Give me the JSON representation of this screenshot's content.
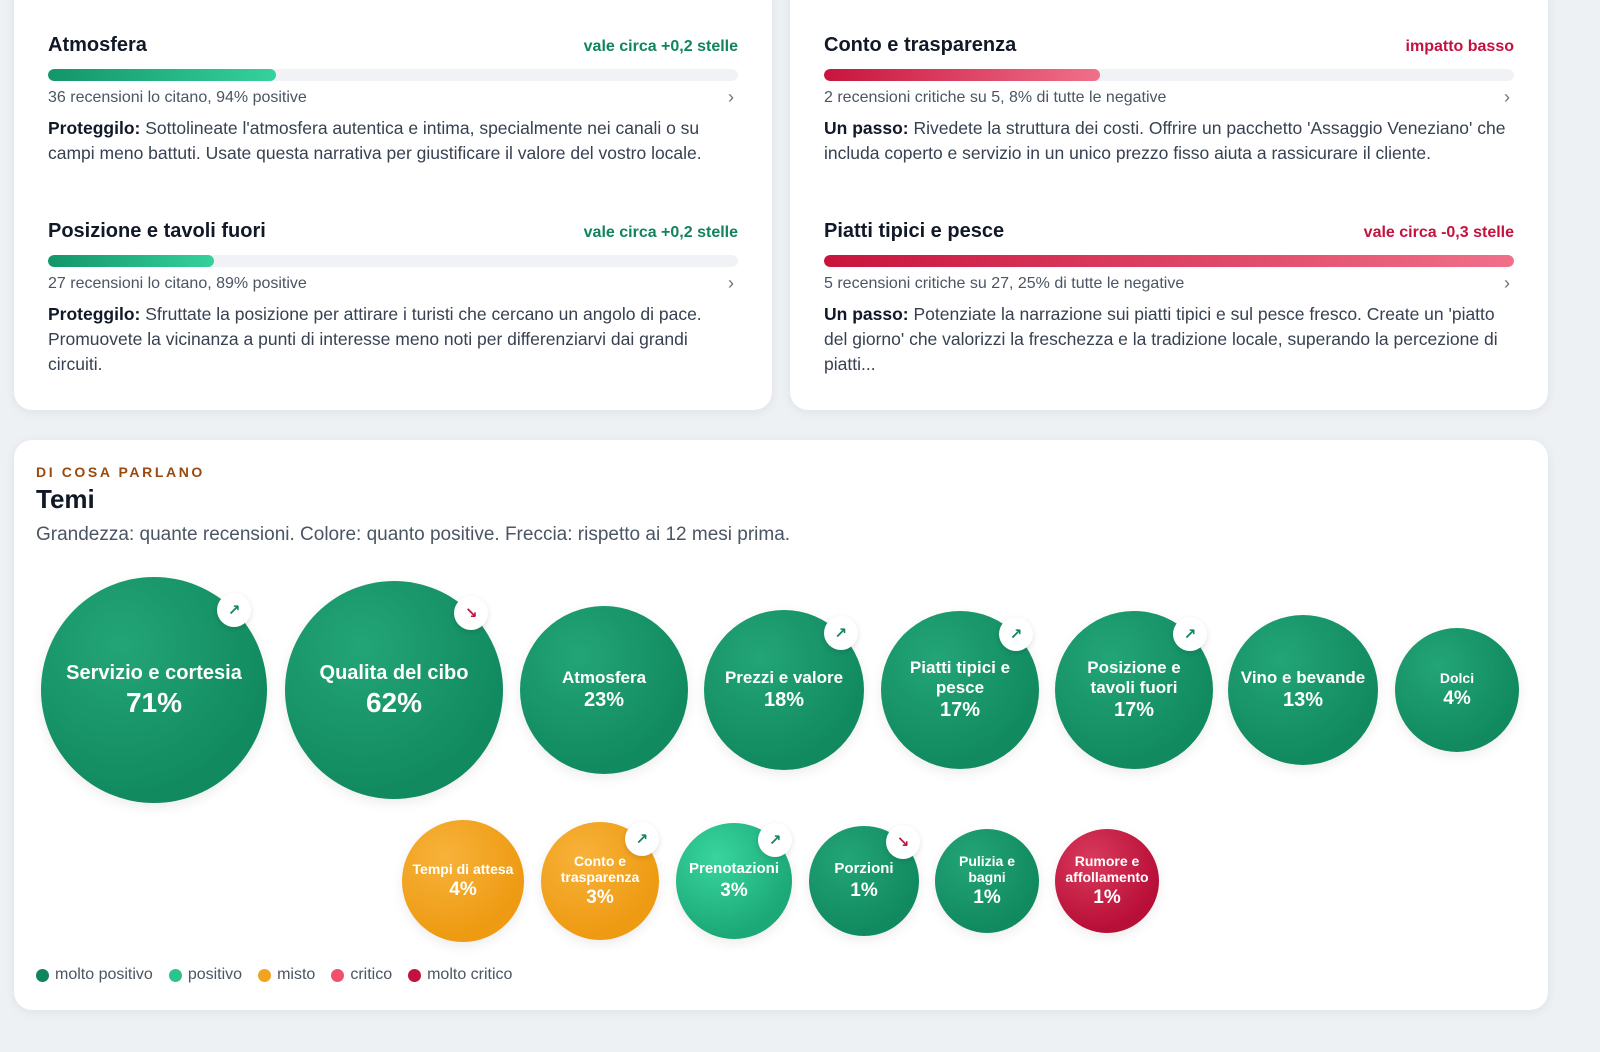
{
  "left_card": {
    "items": [
      {
        "title": "Atmosfera",
        "impact": "vale circa +0,2 stelle",
        "meta": "36 recensioni lo citano, 94% positive",
        "lead": "Proteggilo:",
        "body": "Sottolineate l'atmosfera autentica e intima, specialmente nei canali o su campi meno battuti. Usate questa narrativa per giustificare il valore del vostro locale.",
        "share": 0.33
      },
      {
        "title": "Posizione e tavoli fuori",
        "impact": "vale circa +0,2 stelle",
        "meta": "27 recensioni lo citano, 89% positive",
        "lead": "Proteggilo:",
        "body": "Sfruttate la posizione per attirare i turisti che cercano un angolo di pace. Promuovete la vicinanza a punti di interesse meno noti per differenziarvi dai grandi circuiti.",
        "share": 0.24
      }
    ]
  },
  "right_card": {
    "items": [
      {
        "title": "Conto e trasparenza",
        "impact": "impatto basso",
        "meta": "2 recensioni critiche su 5, 8% di tutte le negative",
        "lead": "Un passo:",
        "body": "Rivedete la struttura dei costi. Offrire un pacchetto 'Assaggio Veneziano' che includa coperto e servizio in un unico prezzo fisso aiuta a rassicurare il cliente.",
        "share": 0.4
      },
      {
        "title": "Piatti tipici e pesce",
        "impact": "vale circa -0,3 stelle",
        "meta": "5 recensioni critiche su 27, 25% di tutte le negative",
        "lead": "Un passo:",
        "body": "Potenziate la narrazione sui piatti tipici e sul pesce fresco. Create un 'piatto del giorno' che valorizzi la freschezza e la tradizione locale, superando la percezione di piatti...",
        "share": 1.0
      }
    ]
  },
  "themes": {
    "eyebrow": "DI COSA PARLANO",
    "title": "Temi",
    "subtitle": "Grandezza: quante recensioni. Colore: quanto positive. Freccia: rispetto ai 12 mesi prima.",
    "bubbles": [
      {
        "label": "Servizio e cortesia",
        "pct": "71%",
        "tone": "molto positivo",
        "trend": "up"
      },
      {
        "label": "Qualita del cibo",
        "pct": "62%",
        "tone": "molto positivo",
        "trend": "down"
      },
      {
        "label": "Atmosfera",
        "pct": "23%",
        "tone": "molto positivo",
        "trend": ""
      },
      {
        "label": "Prezzi e valore",
        "pct": "18%",
        "tone": "molto positivo",
        "trend": "up"
      },
      {
        "label": "Piatti tipici e pesce",
        "pct": "17%",
        "tone": "molto positivo",
        "trend": "up"
      },
      {
        "label": "Posizione e tavoli fuori",
        "pct": "17%",
        "tone": "molto positivo",
        "trend": "up"
      },
      {
        "label": "Vino e bevande",
        "pct": "13%",
        "tone": "molto positivo",
        "trend": ""
      },
      {
        "label": "Dolci",
        "pct": "4%",
        "tone": "molto positivo",
        "trend": ""
      },
      {
        "label": "Tempi di attesa",
        "pct": "4%",
        "tone": "misto",
        "trend": ""
      },
      {
        "label": "Conto e trasparenza",
        "pct": "3%",
        "tone": "misto",
        "trend": "up"
      },
      {
        "label": "Prenotazioni",
        "pct": "3%",
        "tone": "positivo",
        "trend": "up"
      },
      {
        "label": "Porzioni",
        "pct": "1%",
        "tone": "molto positivo",
        "trend": "down"
      },
      {
        "label": "Pulizia e bagni",
        "pct": "1%",
        "tone": "molto positivo",
        "trend": ""
      },
      {
        "label": "Rumore e affollamento",
        "pct": "1%",
        "tone": "molto critico",
        "trend": ""
      }
    ],
    "legend": [
      {
        "label": "molto positivo",
        "color": "#10845e"
      },
      {
        "label": "positivo",
        "color": "#2cc48d"
      },
      {
        "label": "misto",
        "color": "#f2a31f"
      },
      {
        "label": "critico",
        "color": "#f0506e"
      },
      {
        "label": "molto critico",
        "color": "#c4123f"
      }
    ]
  }
}
